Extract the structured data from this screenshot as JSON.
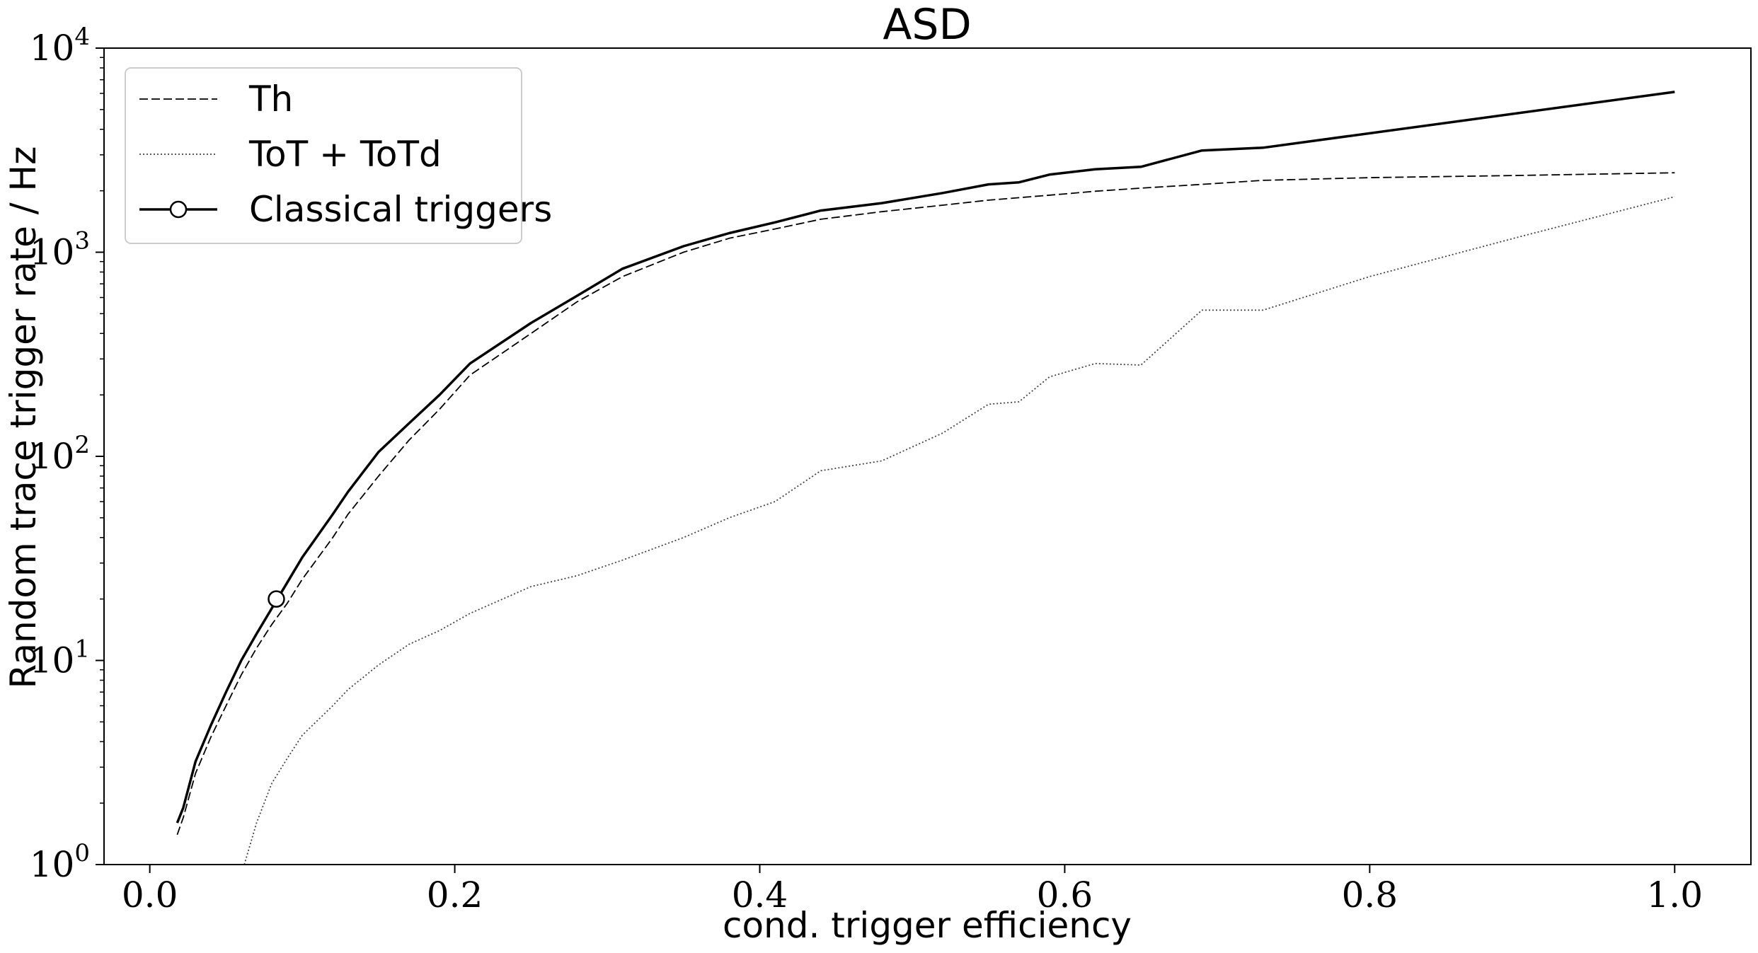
{
  "chart_data": {
    "type": "line",
    "title": "ASD",
    "xlabel": "cond. trigger efficiency",
    "ylabel": "Random trace trigger rate / Hz",
    "xlim": [
      -0.03,
      1.05
    ],
    "ylim": [
      1,
      10000
    ],
    "yscale": "log",
    "x_ticks": [
      0.0,
      0.2,
      0.4,
      0.6,
      0.8,
      1.0
    ],
    "x_tick_labels": [
      "0.0",
      "0.2",
      "0.4",
      "0.6",
      "0.8",
      "1.0"
    ],
    "y_ticks": [
      1,
      10,
      100,
      1000,
      10000
    ],
    "y_tick_labels": [
      {
        "base": "10",
        "exp": "0"
      },
      {
        "base": "10",
        "exp": "1"
      },
      {
        "base": "10",
        "exp": "2"
      },
      {
        "base": "10",
        "exp": "3"
      },
      {
        "base": "10",
        "exp": "4"
      }
    ],
    "grid": false,
    "legend_position": "upper-left",
    "series": [
      {
        "name": "Th",
        "style": "dashed",
        "color": "#000000",
        "x": [
          0.018,
          0.022,
          0.03,
          0.04,
          0.05,
          0.06,
          0.07,
          0.08,
          0.09,
          0.1,
          0.12,
          0.13,
          0.15,
          0.17,
          0.19,
          0.21,
          0.25,
          0.28,
          0.31,
          0.35,
          0.38,
          0.41,
          0.44,
          0.48,
          0.52,
          0.55,
          0.57,
          0.6,
          0.62,
          0.65,
          0.69,
          0.73,
          0.8,
          0.9,
          1.0
        ],
        "y": [
          1.4,
          1.7,
          2.8,
          4.2,
          6.0,
          8.5,
          11.5,
          15,
          19,
          25,
          40,
          52,
          80,
          120,
          170,
          250,
          400,
          570,
          760,
          1000,
          1170,
          1300,
          1450,
          1580,
          1700,
          1800,
          1850,
          1930,
          1990,
          2060,
          2150,
          2250,
          2320,
          2380,
          2450
        ]
      },
      {
        "name": "ToT + ToTd",
        "style": "dotted",
        "color": "#444444",
        "x": [
          0.062,
          0.07,
          0.08,
          0.09,
          0.1,
          0.12,
          0.13,
          0.15,
          0.17,
          0.19,
          0.21,
          0.25,
          0.28,
          0.31,
          0.35,
          0.38,
          0.41,
          0.44,
          0.48,
          0.52,
          0.55,
          0.57,
          0.59,
          0.62,
          0.65,
          0.69,
          0.73,
          0.8,
          0.9,
          1.0
        ],
        "y": [
          1.0,
          1.6,
          2.5,
          3.3,
          4.3,
          6.0,
          7.2,
          9.5,
          12,
          14,
          17,
          23,
          26,
          31,
          40,
          50,
          60,
          85,
          95,
          130,
          180,
          185,
          245,
          285,
          280,
          520,
          520,
          760,
          1200,
          1870
        ]
      },
      {
        "name": "Classical triggers",
        "style": "solid",
        "color": "#000000",
        "x": [
          0.018,
          0.022,
          0.03,
          0.04,
          0.05,
          0.06,
          0.07,
          0.08,
          0.09,
          0.1,
          0.12,
          0.13,
          0.15,
          0.17,
          0.19,
          0.21,
          0.25,
          0.28,
          0.31,
          0.35,
          0.38,
          0.41,
          0.44,
          0.48,
          0.52,
          0.55,
          0.57,
          0.59,
          0.62,
          0.65,
          0.69,
          0.73,
          1.0
        ],
        "y": [
          1.6,
          1.9,
          3.2,
          4.8,
          7.0,
          10,
          13.5,
          18,
          24,
          32,
          52,
          67,
          105,
          145,
          200,
          285,
          450,
          610,
          830,
          1070,
          1240,
          1400,
          1600,
          1740,
          1950,
          2150,
          2200,
          2400,
          2550,
          2620,
          3150,
          3250,
          6100
        ]
      }
    ],
    "markers": [
      {
        "series": "Classical triggers",
        "x": 0.083,
        "y": 20
      }
    ]
  }
}
